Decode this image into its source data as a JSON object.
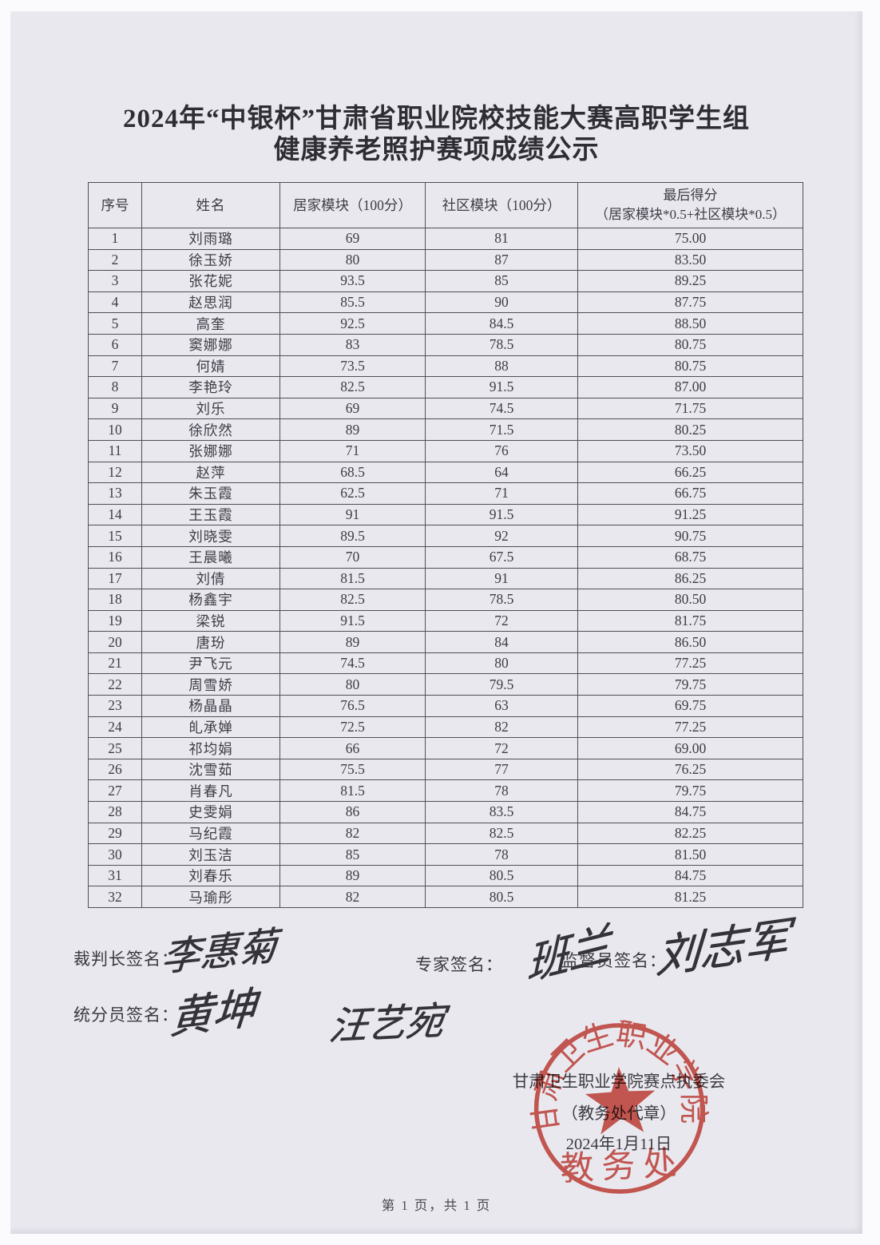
{
  "page": {
    "title_line1": "2024年“中银杯”甘肃省职业院校技能大赛高职学生组",
    "title_line2": "健康养老照护赛项成绩公示",
    "footer": "第 1 页，共 1 页"
  },
  "table": {
    "headers": {
      "seq": "序号",
      "name": "姓名",
      "home": "居家模块（100分）",
      "community": "社区模块（100分）",
      "final_line1": "最后得分",
      "final_line2": "（居家模块*0.5+社区模块*0.5）"
    },
    "rows": [
      {
        "seq": "1",
        "name": "刘雨璐",
        "home": "69",
        "community": "81",
        "final": "75.00"
      },
      {
        "seq": "2",
        "name": "徐玉娇",
        "home": "80",
        "community": "87",
        "final": "83.50"
      },
      {
        "seq": "3",
        "name": "张花妮",
        "home": "93.5",
        "community": "85",
        "final": "89.25"
      },
      {
        "seq": "4",
        "name": "赵思润",
        "home": "85.5",
        "community": "90",
        "final": "87.75"
      },
      {
        "seq": "5",
        "name": "高奎",
        "home": "92.5",
        "community": "84.5",
        "final": "88.50"
      },
      {
        "seq": "6",
        "name": "窦娜娜",
        "home": "83",
        "community": "78.5",
        "final": "80.75"
      },
      {
        "seq": "7",
        "name": "何婧",
        "home": "73.5",
        "community": "88",
        "final": "80.75"
      },
      {
        "seq": "8",
        "name": "李艳玲",
        "home": "82.5",
        "community": "91.5",
        "final": "87.00"
      },
      {
        "seq": "9",
        "name": "刘乐",
        "home": "69",
        "community": "74.5",
        "final": "71.75"
      },
      {
        "seq": "10",
        "name": "徐欣然",
        "home": "89",
        "community": "71.5",
        "final": "80.25"
      },
      {
        "seq": "11",
        "name": "张娜娜",
        "home": "71",
        "community": "76",
        "final": "73.50"
      },
      {
        "seq": "12",
        "name": "赵萍",
        "home": "68.5",
        "community": "64",
        "final": "66.25"
      },
      {
        "seq": "13",
        "name": "朱玉霞",
        "home": "62.5",
        "community": "71",
        "final": "66.75"
      },
      {
        "seq": "14",
        "name": "王玉霞",
        "home": "91",
        "community": "91.5",
        "final": "91.25"
      },
      {
        "seq": "15",
        "name": "刘晓雯",
        "home": "89.5",
        "community": "92",
        "final": "90.75"
      },
      {
        "seq": "16",
        "name": "王晨曦",
        "home": "70",
        "community": "67.5",
        "final": "68.75"
      },
      {
        "seq": "17",
        "name": "刘倩",
        "home": "81.5",
        "community": "91",
        "final": "86.25"
      },
      {
        "seq": "18",
        "name": "杨鑫宇",
        "home": "82.5",
        "community": "78.5",
        "final": "80.50"
      },
      {
        "seq": "19",
        "name": "梁锐",
        "home": "91.5",
        "community": "72",
        "final": "81.75"
      },
      {
        "seq": "20",
        "name": "唐玢",
        "home": "89",
        "community": "84",
        "final": "86.50"
      },
      {
        "seq": "21",
        "name": "尹飞元",
        "home": "74.5",
        "community": "80",
        "final": "77.25"
      },
      {
        "seq": "22",
        "name": "周雪娇",
        "home": "80",
        "community": "79.5",
        "final": "79.75"
      },
      {
        "seq": "23",
        "name": "杨晶晶",
        "home": "76.5",
        "community": "63",
        "final": "69.75"
      },
      {
        "seq": "24",
        "name": "癿承婵",
        "home": "72.5",
        "community": "82",
        "final": "77.25"
      },
      {
        "seq": "25",
        "name": "祁均娟",
        "home": "66",
        "community": "72",
        "final": "69.00"
      },
      {
        "seq": "26",
        "name": "沈雪茹",
        "home": "75.5",
        "community": "77",
        "final": "76.25"
      },
      {
        "seq": "27",
        "name": "肖春凡",
        "home": "81.5",
        "community": "78",
        "final": "79.75"
      },
      {
        "seq": "28",
        "name": "史雯娟",
        "home": "86",
        "community": "83.5",
        "final": "84.75"
      },
      {
        "seq": "29",
        "name": "马纪霞",
        "home": "82",
        "community": "82.5",
        "final": "82.25"
      },
      {
        "seq": "30",
        "name": "刘玉洁",
        "home": "85",
        "community": "78",
        "final": "81.50"
      },
      {
        "seq": "31",
        "name": "刘春乐",
        "home": "89",
        "community": "80.5",
        "final": "84.75"
      },
      {
        "seq": "32",
        "name": "马瑜彤",
        "home": "82",
        "community": "80.5",
        "final": "81.25"
      }
    ]
  },
  "signatures": {
    "referee_label": "裁判长签名：",
    "referee_name": "李惠菊",
    "expert_label": "专家签名：",
    "expert_name": "班兰",
    "supervisor_label": "监督员签名：",
    "supervisor_name": "刘志军",
    "scorer_label": "统分员签名：",
    "scorer_name1": "黄坤",
    "scorer_name2": "汪艺宛"
  },
  "stamp": {
    "org_line": "甘肃卫生职业学院赛点执委会",
    "proxy_line": "（教务处代章）",
    "date_line": "2024年1月11日",
    "ring_text": "甘肃卫生职业学院",
    "inner_text": "教务处",
    "color": "#c9392e"
  }
}
